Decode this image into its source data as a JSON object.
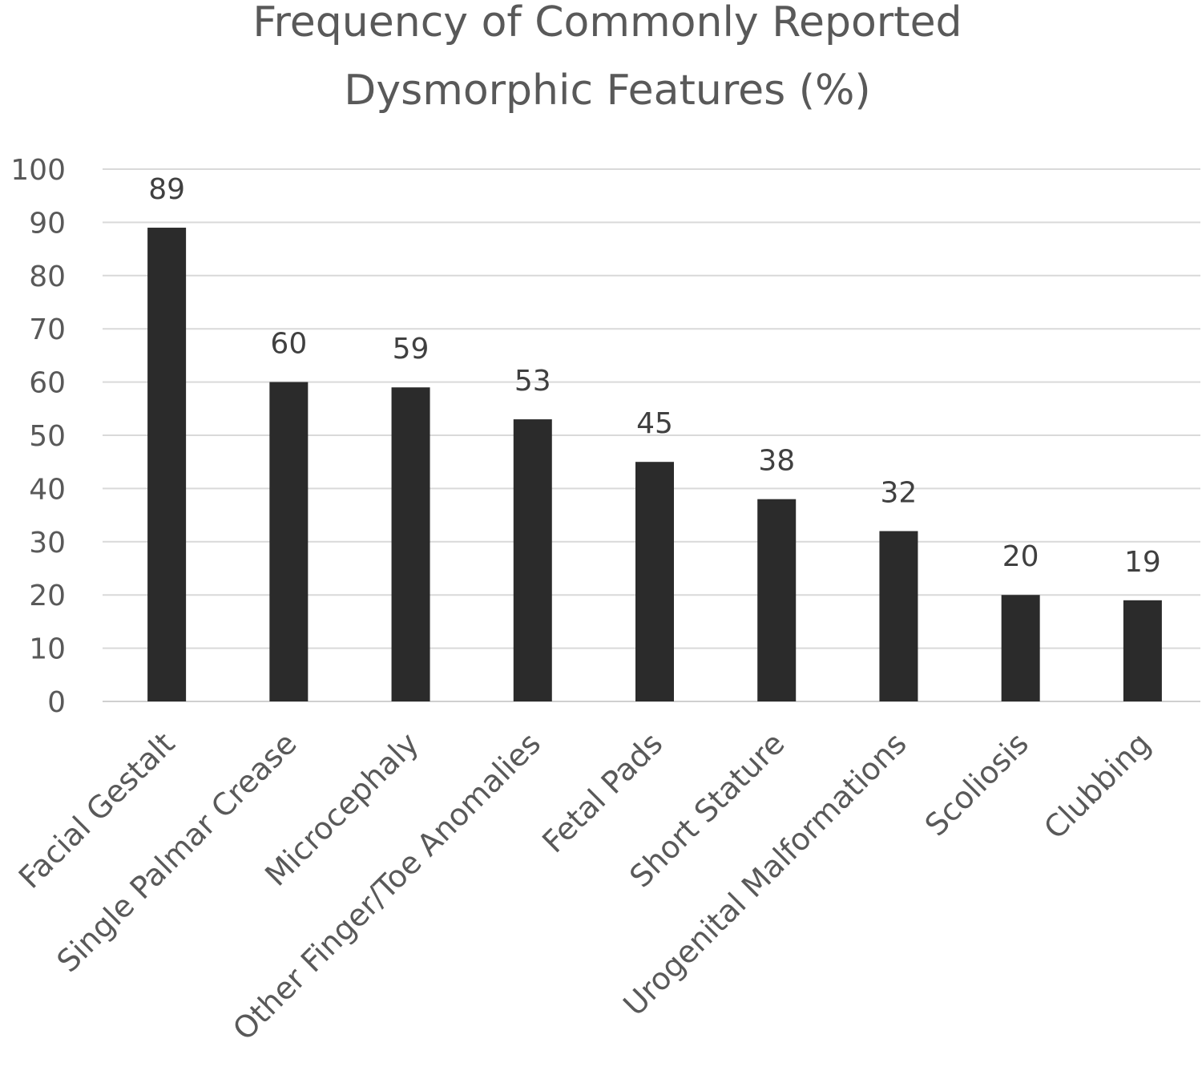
{
  "chart_data": {
    "type": "bar",
    "title_lines": [
      "Frequency of Commonly Reported",
      "Dysmorphic Features  (%)"
    ],
    "categories": [
      "Facial Gestalt",
      "Single Palmar Crease",
      "Microcephaly",
      "Other Finger/Toe Anomalies",
      "Fetal Pads",
      "Short Stature",
      "Urogenital Malformations",
      "Scoliosis",
      "Clubbing"
    ],
    "values": [
      89,
      60,
      59,
      53,
      45,
      38,
      32,
      20,
      19
    ],
    "ylim": [
      0,
      100
    ],
    "yticks": [
      0,
      10,
      20,
      30,
      40,
      50,
      60,
      70,
      80,
      90,
      100
    ],
    "grid": true,
    "data_labels": true,
    "bar_color": "#2b2b2b",
    "grid_color": "#d9d9d9",
    "text_color": "#595959"
  }
}
